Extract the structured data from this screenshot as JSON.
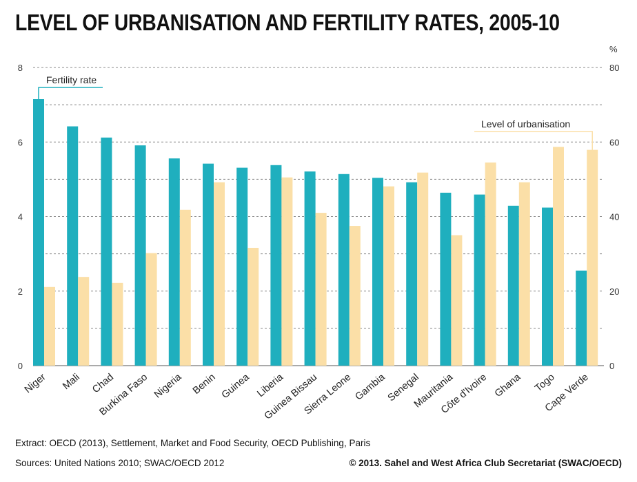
{
  "title": "LEVEL OF URBANISATION AND FERTILITY RATES, 2005-10",
  "unit_right": "%",
  "footer": {
    "extract": "Extract: OECD (2013), Settlement, Market and Food Security, OECD Publishing, Paris",
    "sources": "Sources: United Nations 2010; SWAC/OECD 2012",
    "copyright": "© 2013. Sahel and West Africa Club Secretariat (SWAC/OECD)"
  },
  "colors": {
    "fertility": "#1fafbe",
    "urbanisation": "#fbdfa7",
    "grid": "#888888",
    "axis_text": "#333333"
  },
  "chart_data": {
    "type": "bar",
    "categories": [
      "Niger",
      "Mali",
      "Chad",
      "Burkina Faso",
      "Nigeria",
      "Benin",
      "Guinea",
      "Liberia",
      "Guinea Bissau",
      "Sierra Leone",
      "Gambia",
      "Senegal",
      "Mauritania",
      "Côte d'Ivoire",
      "Ghana",
      "Togo",
      "Cape Verde"
    ],
    "series": [
      {
        "name": "Fertility rate",
        "axis": "left",
        "color": "#1fafbe",
        "values": [
          7.15,
          6.42,
          6.12,
          5.91,
          5.56,
          5.42,
          5.31,
          5.38,
          5.21,
          5.14,
          5.04,
          4.92,
          4.64,
          4.59,
          4.29,
          4.24,
          2.55
        ]
      },
      {
        "name": "Level of urbanisation",
        "axis": "right",
        "color": "#fbdfa7",
        "values": [
          21.1,
          23.8,
          22.2,
          30.2,
          41.8,
          49.2,
          31.6,
          50.5,
          41.0,
          37.5,
          48.1,
          51.8,
          35.0,
          54.5,
          49.2,
          58.7,
          57.9
        ]
      }
    ],
    "y_left": {
      "min": 0,
      "max": 8,
      "ticks": [
        0,
        2,
        4,
        6,
        8
      ]
    },
    "y_right": {
      "min": 0,
      "max": 80,
      "ticks": [
        0,
        20,
        40,
        60,
        80
      ]
    },
    "grid": true,
    "legend_placement": "in-chart callouts"
  }
}
